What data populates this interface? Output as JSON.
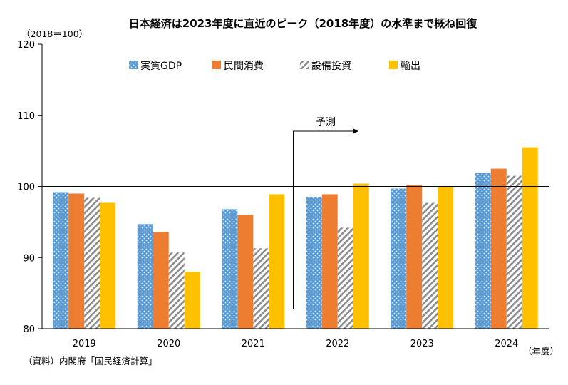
{
  "chart_data": {
    "type": "bar",
    "title": "日本経済は2023年度に直近のピーク（2018年度）の水準まで概ね回復",
    "ylabel": "（2018＝100）",
    "xlabel": "（年度）",
    "source": "（資料）内閣府「国民経済計算」",
    "categories": [
      "2019",
      "2020",
      "2021",
      "2022",
      "2023",
      "2024"
    ],
    "ylim": [
      80,
      120
    ],
    "yticks": [
      80,
      90,
      100,
      110,
      120
    ],
    "reference_line": 100,
    "forecast_label": "予測",
    "forecast_start": "2022",
    "legend_position": "top",
    "grid": false,
    "series": [
      {
        "name": "実質GDP",
        "color": "#5b9bd5",
        "pattern": "dots",
        "values": [
          99.2,
          94.7,
          96.8,
          98.5,
          99.7,
          101.9
        ]
      },
      {
        "name": "民間消費",
        "color": "#ed7d31",
        "pattern": "solid",
        "values": [
          99.0,
          93.6,
          96.0,
          98.9,
          100.2,
          102.5
        ]
      },
      {
        "name": "設備投資",
        "color": "#a5a5a5",
        "pattern": "hatch",
        "values": [
          98.4,
          90.7,
          91.3,
          94.2,
          97.7,
          101.5
        ]
      },
      {
        "name": "輸出",
        "color": "#ffc000",
        "pattern": "solid",
        "values": [
          97.7,
          88.0,
          98.9,
          100.4,
          100.0,
          105.5
        ]
      }
    ]
  }
}
